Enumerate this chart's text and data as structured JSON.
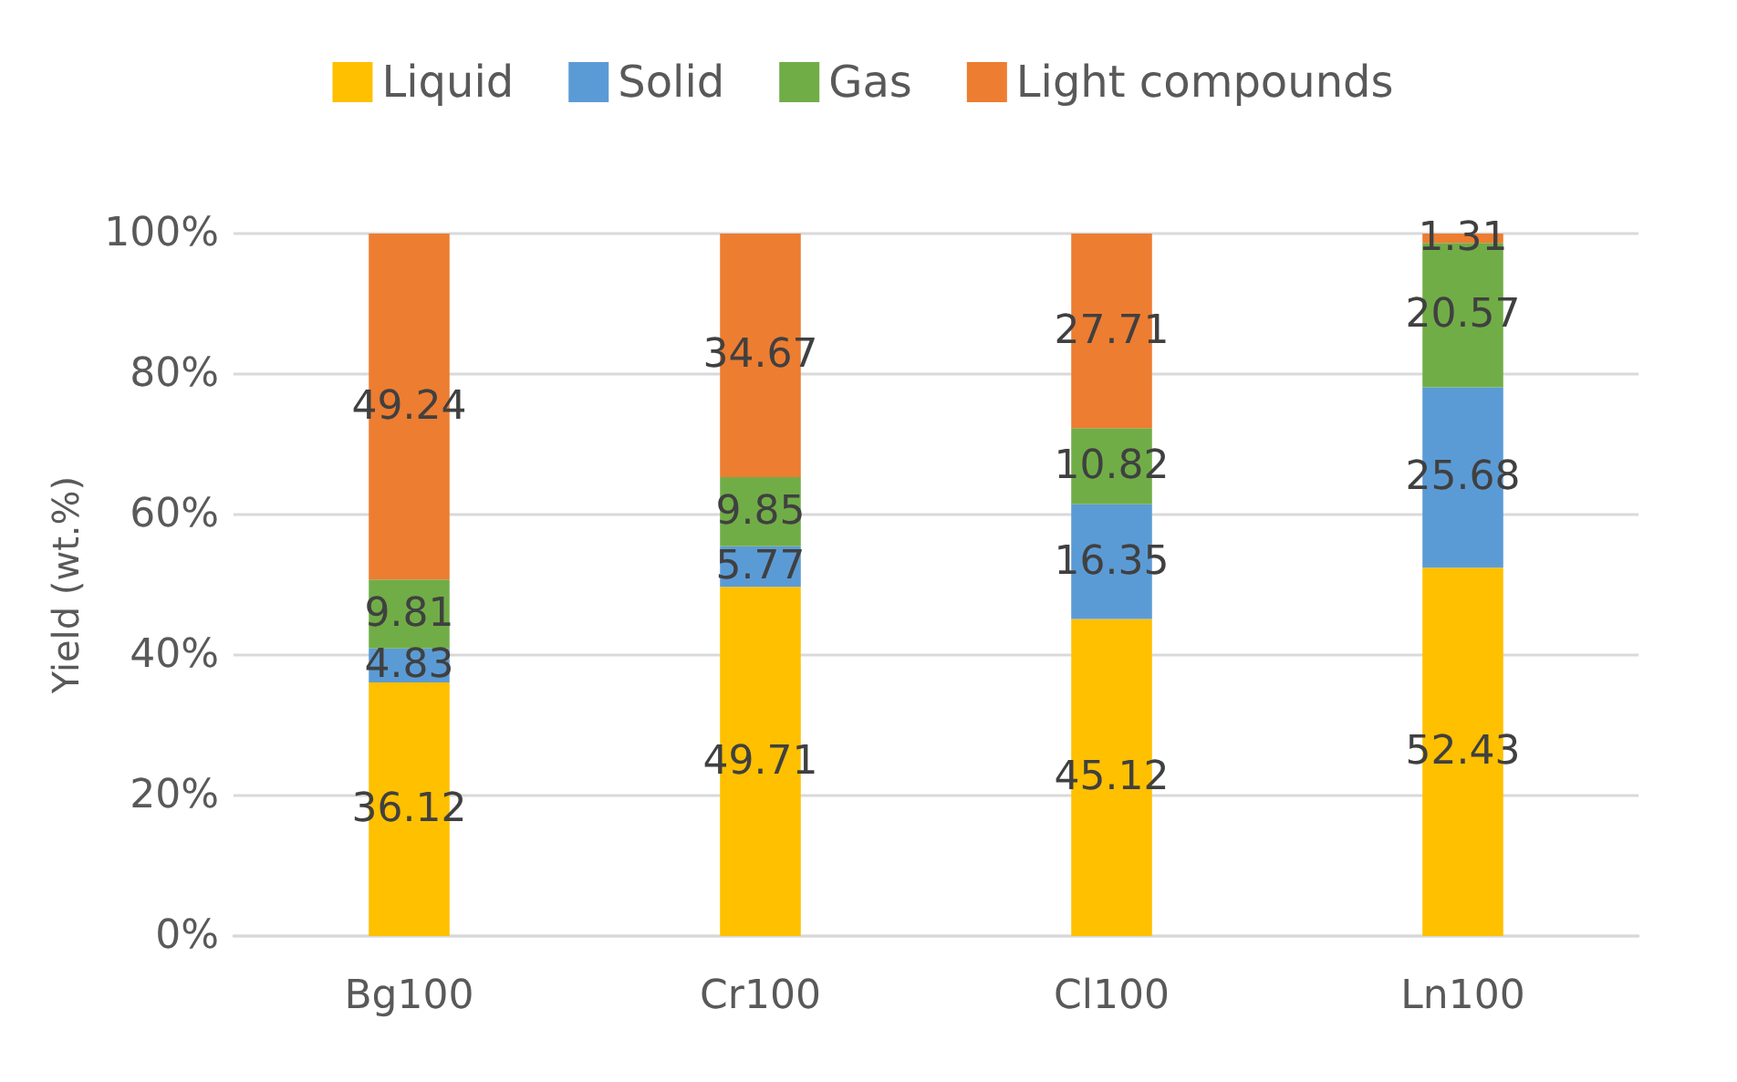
{
  "chart_data": {
    "type": "bar",
    "stacked": true,
    "ylabel": "Yield (wt.%)",
    "categories": [
      "Bg100",
      "Cr100",
      "Cl100",
      "Ln100"
    ],
    "series": [
      {
        "name": "Liquid",
        "color": "#ffc000",
        "values": [
          36.12,
          49.71,
          45.12,
          52.43
        ]
      },
      {
        "name": "Solid",
        "color": "#5b9bd5",
        "values": [
          4.83,
          5.77,
          16.35,
          25.68
        ]
      },
      {
        "name": "Gas",
        "color": "#70ad47",
        "values": [
          9.81,
          9.85,
          10.82,
          20.57
        ]
      },
      {
        "name": "Light compounds",
        "color": "#ed7d31",
        "values": [
          49.24,
          34.67,
          27.71,
          1.31
        ]
      }
    ],
    "ylim": [
      0,
      100
    ],
    "yticks": [
      {
        "value": 0,
        "label": "0%"
      },
      {
        "value": 20,
        "label": "20%"
      },
      {
        "value": 40,
        "label": "40%"
      },
      {
        "value": 60,
        "label": "60%"
      },
      {
        "value": 80,
        "label": "80%"
      },
      {
        "value": 100,
        "label": "100%"
      }
    ],
    "grid": "y",
    "legend": "top",
    "data_labels": true
  }
}
